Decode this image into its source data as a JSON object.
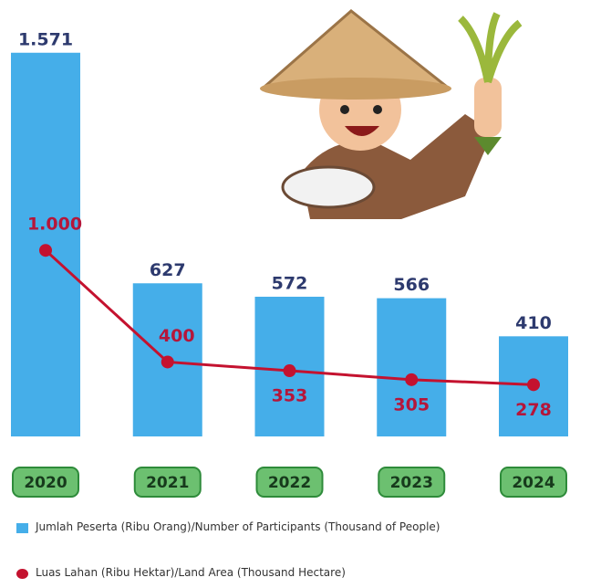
{
  "chart_data": {
    "type": "bar-line",
    "categories": [
      "2020",
      "2021",
      "2022",
      "2023",
      "2024"
    ],
    "series": [
      {
        "name": "Jumlah Peserta (Ribu Orang)/Number of Participants (Thousand of People)",
        "type": "bar",
        "color": "#45aee9",
        "values": [
          1571,
          627,
          572,
          566,
          410
        ],
        "value_labels": [
          "1.571",
          "627",
          "572",
          "566",
          "410"
        ]
      },
      {
        "name": "Luas Lahan (Ribu Hektar)/Land Area (Thousand Hectare)",
        "type": "line",
        "axis": "y2",
        "color": "#c4122f",
        "values": [
          1000,
          400,
          353,
          305,
          278
        ],
        "value_labels": [
          "1.000",
          "400",
          "353",
          "305",
          "278"
        ]
      }
    ],
    "ylim": [
      0,
      1600
    ],
    "y2lim": [
      0,
      2100
    ]
  }
}
